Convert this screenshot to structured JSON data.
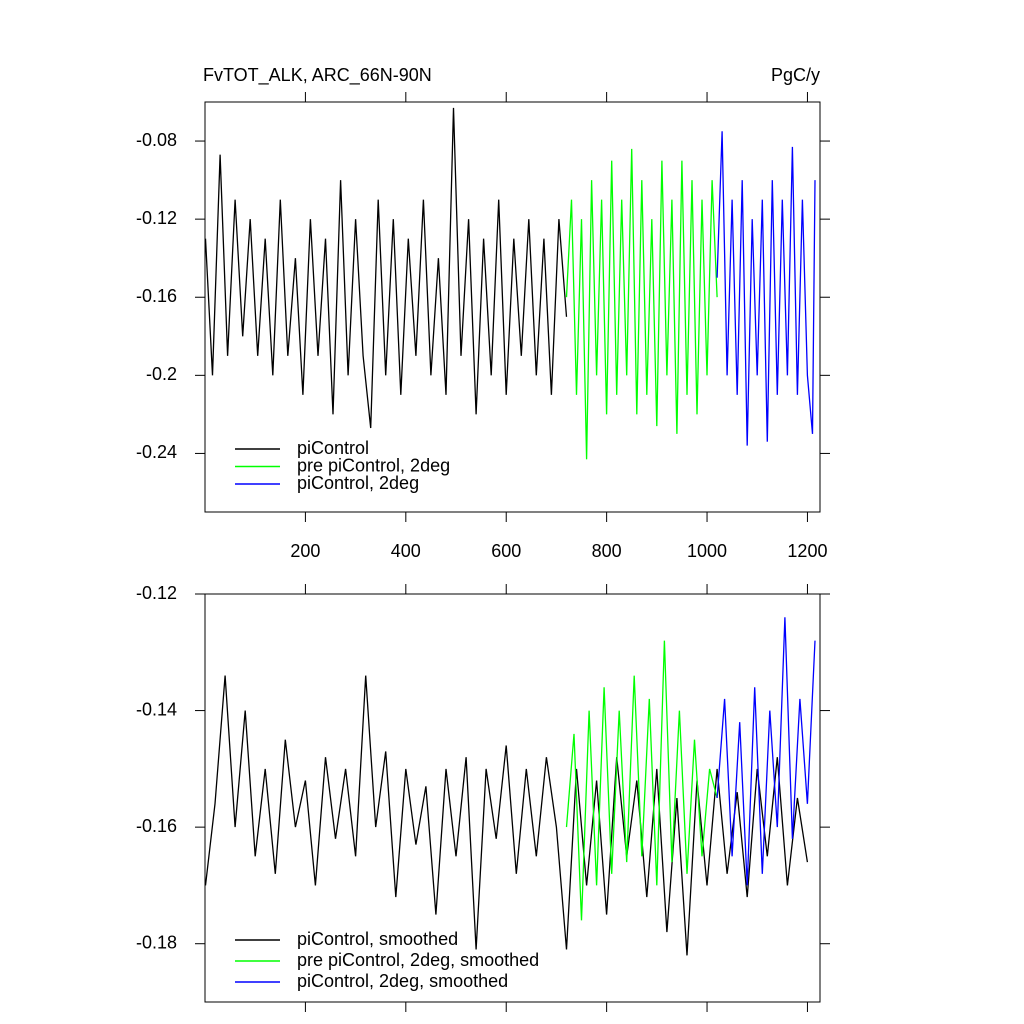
{
  "chart_data": [
    {
      "type": "line",
      "title": "FvTOT_ALK, ARC_66N-90N",
      "units": "PgC/y",
      "xlim": [
        0,
        1225
      ],
      "xticks": [
        200,
        400,
        600,
        800,
        1000,
        1200
      ],
      "xtick_labels": true,
      "ylim": [
        -0.27,
        -0.06
      ],
      "yticks": [
        -0.08,
        -0.12,
        -0.16,
        -0.2,
        -0.24
      ],
      "legend": "lower left",
      "series": [
        {
          "name": "piControl",
          "color": "#000000",
          "x": [
            1,
            15,
            30,
            45,
            60,
            75,
            90,
            105,
            120,
            135,
            150,
            165,
            180,
            195,
            210,
            225,
            240,
            255,
            270,
            285,
            300,
            315,
            330,
            345,
            360,
            375,
            390,
            405,
            420,
            435,
            450,
            465,
            480,
            495,
            510,
            525,
            540,
            555,
            570,
            585,
            600,
            615,
            630,
            645,
            660,
            675,
            690,
            705,
            720
          ],
          "values": [
            -0.13,
            -0.2,
            -0.087,
            -0.19,
            -0.11,
            -0.18,
            -0.12,
            -0.19,
            -0.13,
            -0.2,
            -0.11,
            -0.19,
            -0.14,
            -0.21,
            -0.12,
            -0.19,
            -0.13,
            -0.22,
            -0.1,
            -0.2,
            -0.12,
            -0.19,
            -0.227,
            -0.11,
            -0.2,
            -0.12,
            -0.21,
            -0.13,
            -0.19,
            -0.11,
            -0.2,
            -0.14,
            -0.21,
            -0.063,
            -0.19,
            -0.12,
            -0.22,
            -0.13,
            -0.2,
            -0.11,
            -0.21,
            -0.13,
            -0.19,
            -0.12,
            -0.2,
            -0.13,
            -0.21,
            -0.12,
            -0.17
          ]
        },
        {
          "name": "pre piControl, 2deg",
          "color": "#00ff00",
          "x": [
            720,
            730,
            740,
            750,
            760,
            770,
            780,
            790,
            800,
            810,
            820,
            830,
            840,
            850,
            860,
            870,
            880,
            890,
            900,
            910,
            920,
            930,
            940,
            950,
            960,
            970,
            980,
            990,
            1000,
            1010,
            1020
          ],
          "values": [
            -0.16,
            -0.11,
            -0.21,
            -0.12,
            -0.243,
            -0.1,
            -0.2,
            -0.11,
            -0.22,
            -0.09,
            -0.21,
            -0.11,
            -0.2,
            -0.084,
            -0.22,
            -0.1,
            -0.21,
            -0.12,
            -0.226,
            -0.09,
            -0.2,
            -0.11,
            -0.23,
            -0.09,
            -0.21,
            -0.1,
            -0.22,
            -0.11,
            -0.2,
            -0.1,
            -0.16
          ]
        },
        {
          "name": "piControl, 2deg",
          "color": "#0000ff",
          "x": [
            1020,
            1030,
            1040,
            1050,
            1060,
            1070,
            1080,
            1090,
            1100,
            1110,
            1120,
            1130,
            1140,
            1150,
            1160,
            1170,
            1180,
            1190,
            1200,
            1210,
            1215
          ],
          "values": [
            -0.15,
            -0.075,
            -0.2,
            -0.11,
            -0.21,
            -0.1,
            -0.236,
            -0.12,
            -0.2,
            -0.11,
            -0.234,
            -0.1,
            -0.21,
            -0.11,
            -0.2,
            -0.083,
            -0.21,
            -0.11,
            -0.2,
            -0.23,
            -0.1
          ]
        }
      ]
    },
    {
      "type": "line",
      "xlim": [
        0,
        1225
      ],
      "xticks": [
        200,
        400,
        600,
        800,
        1000,
        1200
      ],
      "xtick_labels": false,
      "ylim": [
        -0.19,
        -0.12
      ],
      "yticks": [
        -0.12,
        -0.14,
        -0.16,
        -0.18
      ],
      "legend": "lower left",
      "series": [
        {
          "name": "piControl, smoothed",
          "color": "#000000",
          "x": [
            1,
            20,
            40,
            60,
            80,
            100,
            120,
            140,
            160,
            180,
            200,
            220,
            240,
            260,
            280,
            300,
            320,
            340,
            360,
            380,
            400,
            420,
            440,
            460,
            480,
            500,
            520,
            540,
            560,
            580,
            600,
            620,
            640,
            660,
            680,
            700,
            720,
            740,
            760,
            780,
            800,
            820,
            840,
            860,
            880,
            900,
            920,
            940,
            960,
            980,
            1000,
            1020,
            1040,
            1060,
            1080,
            1100,
            1120,
            1140,
            1160,
            1180,
            1200
          ],
          "values": [
            -0.17,
            -0.156,
            -0.134,
            -0.16,
            -0.14,
            -0.165,
            -0.15,
            -0.168,
            -0.145,
            -0.16,
            -0.152,
            -0.17,
            -0.148,
            -0.162,
            -0.15,
            -0.165,
            -0.134,
            -0.16,
            -0.147,
            -0.172,
            -0.15,
            -0.163,
            -0.153,
            -0.175,
            -0.15,
            -0.165,
            -0.148,
            -0.181,
            -0.15,
            -0.162,
            -0.146,
            -0.168,
            -0.15,
            -0.165,
            -0.148,
            -0.16,
            -0.181,
            -0.15,
            -0.17,
            -0.152,
            -0.175,
            -0.148,
            -0.165,
            -0.152,
            -0.172,
            -0.15,
            -0.178,
            -0.155,
            -0.182,
            -0.152,
            -0.17,
            -0.15,
            -0.168,
            -0.154,
            -0.172,
            -0.15,
            -0.165,
            -0.148,
            -0.17,
            -0.155,
            -0.166
          ]
        },
        {
          "name": "pre piControl, 2deg, smoothed",
          "color": "#00ff00",
          "x": [
            720,
            735,
            750,
            765,
            780,
            795,
            810,
            825,
            840,
            855,
            870,
            885,
            900,
            915,
            930,
            945,
            960,
            975,
            990,
            1005,
            1020
          ],
          "values": [
            -0.16,
            -0.144,
            -0.176,
            -0.14,
            -0.17,
            -0.136,
            -0.168,
            -0.14,
            -0.166,
            -0.134,
            -0.165,
            -0.138,
            -0.17,
            -0.128,
            -0.166,
            -0.14,
            -0.168,
            -0.145,
            -0.165,
            -0.15,
            -0.155
          ]
        },
        {
          "name": "piControl, 2deg, smoothed",
          "color": "#0000ff",
          "x": [
            1020,
            1035,
            1050,
            1065,
            1080,
            1095,
            1110,
            1125,
            1140,
            1155,
            1170,
            1185,
            1200,
            1215
          ],
          "values": [
            -0.155,
            -0.138,
            -0.165,
            -0.142,
            -0.17,
            -0.136,
            -0.168,
            -0.14,
            -0.16,
            -0.124,
            -0.162,
            -0.138,
            -0.156,
            -0.128
          ]
        }
      ]
    }
  ]
}
